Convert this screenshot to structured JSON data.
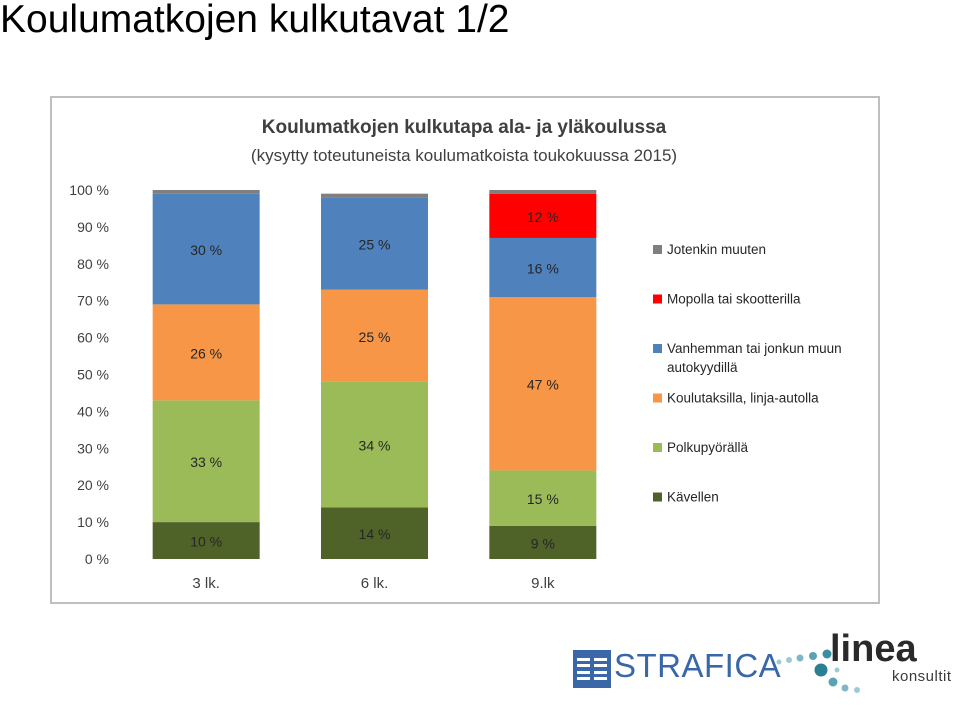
{
  "page": {
    "title": "Koulumatkojen kulkutavat 1/2"
  },
  "logos": {
    "strafica": "STRAFICA",
    "linea": "linea",
    "linea_sub": "konsultit"
  },
  "colors": {
    "walking": "#4f6228",
    "bicycle": "#9bbb59",
    "taxi_bus": "#f79646",
    "parent_car": "#4f81bd",
    "moped": "#ff0000",
    "other": "#7f7f7f",
    "strafica_blue": "#3a67a8",
    "linea_teal": "#2a8a9a"
  },
  "chart_data": {
    "type": "bar",
    "stacked": true,
    "title": "Koulumatkojen kulkutapa ala- ja yläkoulussa",
    "subtitle": "(kysytty toteutuneista koulumatkoista toukokuussa 2015)",
    "categories": [
      "3 lk.",
      "6 lk.",
      "9.lk"
    ],
    "yticks": [
      "0 %",
      "10 %",
      "20 %",
      "30 %",
      "40 %",
      "50 %",
      "60 %",
      "70 %",
      "80 %",
      "90 %",
      "100 %"
    ],
    "ylim": [
      0,
      100
    ],
    "legend_position": "right",
    "series": [
      {
        "key": "walking",
        "name": "Kävellen",
        "values": [
          10,
          14,
          9
        ],
        "labels": [
          "10 %",
          "14 %",
          "9 %"
        ]
      },
      {
        "key": "bicycle",
        "name": "Polkupyörällä",
        "values": [
          33,
          34,
          15
        ],
        "labels": [
          "33 %",
          "34 %",
          "15 %"
        ]
      },
      {
        "key": "taxi_bus",
        "name": "Koulutaksilla, linja-autolla",
        "values": [
          26,
          25,
          47
        ],
        "labels": [
          "26 %",
          "25 %",
          "47 %"
        ]
      },
      {
        "key": "parent_car",
        "name": "Vanhemman tai jonkun muun autokyydillä",
        "name_lines": [
          "Vanhemman tai jonkun muun",
          "autokyydillä"
        ],
        "values": [
          30,
          25,
          16
        ],
        "labels": [
          "30 %",
          "25 %",
          "16 %"
        ]
      },
      {
        "key": "moped",
        "name": "Mopolla tai skootterilla",
        "values": [
          0,
          0,
          12
        ],
        "labels": [
          "",
          "",
          "12 %"
        ]
      },
      {
        "key": "other",
        "name": "Jotenkin muuten",
        "values": [
          1,
          1,
          1
        ],
        "labels": [
          "",
          "",
          ""
        ]
      }
    ]
  }
}
